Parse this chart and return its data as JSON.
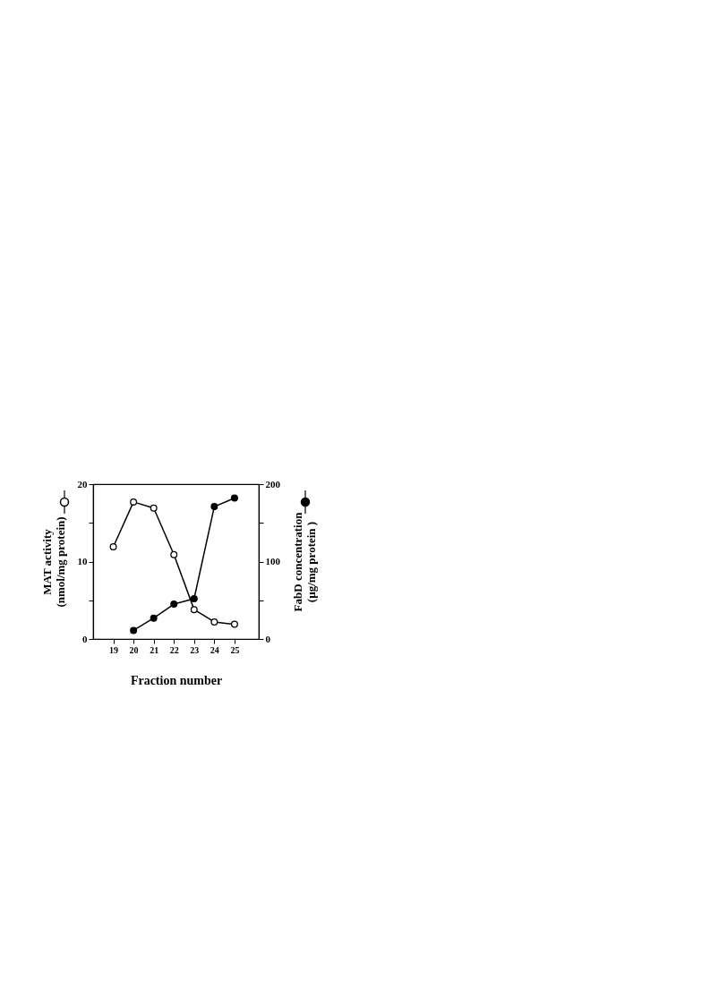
{
  "chart_data": {
    "type": "line",
    "xlabel": "Fraction number",
    "ylabel": "MAT activity\n(nmol/mg protein)",
    "y2label": "FabD concentration\n(µg/mg protein )",
    "x": [
      19,
      20,
      21,
      22,
      23,
      24,
      25
    ],
    "xlim": [
      18,
      26.2
    ],
    "xticks": [
      19,
      20,
      21,
      22,
      23,
      24,
      25
    ],
    "ylim": [
      0,
      20
    ],
    "yticks": [
      0,
      {
        "value": 5,
        "label": null
      },
      10,
      {
        "value": 15,
        "label": null
      },
      20
    ],
    "y2lim": [
      0,
      200
    ],
    "y2ticks": [
      0,
      {
        "value": 50,
        "label": null
      },
      100,
      {
        "value": 150,
        "label": null
      },
      200
    ],
    "marker": "circle",
    "grid": false,
    "series": [
      {
        "color": "#000000",
        "values": [
          11.9,
          17.7,
          16.9,
          10.9,
          3.8,
          2.2,
          1.9
        ]
      },
      {
        "color": "#000000",
        "axis": "y2",
        "values": [
          null,
          11,
          27,
          45,
          52,
          171,
          182
        ]
      }
    ]
  }
}
